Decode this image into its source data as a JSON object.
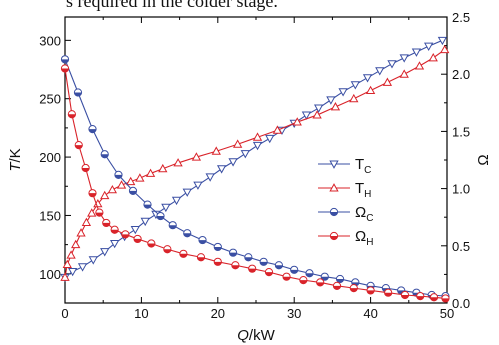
{
  "caption": "s required in the colder stage.",
  "chart_data": {
    "type": "line",
    "title": "",
    "xlabel_main": "Q",
    "xlabel_unit": "/kW",
    "ylabel_main": "T",
    "ylabel_unit": "/K",
    "y2label": "Ω",
    "xlim": [
      0,
      50
    ],
    "ylim": [
      75,
      320
    ],
    "y2lim": [
      0,
      2.5
    ],
    "xticks": [
      0,
      10,
      20,
      30,
      40,
      50
    ],
    "yticks": [
      100,
      150,
      200,
      250,
      300
    ],
    "y2ticks": [
      "0.0",
      "0.5",
      "1.0",
      "1.5",
      "2.0",
      "2.5"
    ],
    "grid": false,
    "legend_position": "right",
    "colors": {
      "blue": "#3a4fa3",
      "red": "#d9232a"
    },
    "series": [
      {
        "name": "T",
        "sub": "C",
        "axis": "left",
        "marker": "triangle-down",
        "color": "#3a4fa3",
        "points": [
          [
            0,
            97
          ],
          [
            1,
            102
          ],
          [
            2.3,
            106
          ],
          [
            3.7,
            112
          ],
          [
            5.2,
            119
          ],
          [
            6.5,
            126
          ],
          [
            7.8,
            132
          ],
          [
            9.2,
            138
          ],
          [
            10.5,
            145
          ],
          [
            11.9,
            151
          ],
          [
            13.2,
            157
          ],
          [
            14.6,
            163
          ],
          [
            16,
            170
          ],
          [
            17.4,
            176
          ],
          [
            19,
            183
          ],
          [
            20.5,
            190
          ],
          [
            22,
            196
          ],
          [
            23.6,
            203
          ],
          [
            25.2,
            210
          ],
          [
            26.8,
            216
          ],
          [
            28.4,
            223
          ],
          [
            30,
            229
          ],
          [
            31.6,
            236
          ],
          [
            33.2,
            242
          ],
          [
            34.8,
            249
          ],
          [
            36.4,
            256
          ],
          [
            38,
            262
          ],
          [
            39.6,
            268
          ],
          [
            41.2,
            274
          ],
          [
            42.8,
            280
          ],
          [
            44.4,
            285
          ],
          [
            46,
            290
          ],
          [
            47.6,
            295
          ],
          [
            49.4,
            300
          ]
        ]
      },
      {
        "name": "T",
        "sub": "H",
        "axis": "left",
        "marker": "triangle-up",
        "color": "#d9232a",
        "points": [
          [
            0,
            97
          ],
          [
            0.3,
            108
          ],
          [
            0.8,
            116
          ],
          [
            1.4,
            125
          ],
          [
            2.1,
            135
          ],
          [
            2.8,
            144
          ],
          [
            3.5,
            152
          ],
          [
            4.3,
            160
          ],
          [
            5.2,
            167
          ],
          [
            6.2,
            172
          ],
          [
            7.4,
            176
          ],
          [
            8.6,
            179
          ],
          [
            9.8,
            182
          ],
          [
            11.2,
            186
          ],
          [
            12.8,
            190
          ],
          [
            14.8,
            195
          ],
          [
            17.2,
            200
          ],
          [
            19.8,
            205
          ],
          [
            22.6,
            211
          ],
          [
            25.2,
            217
          ],
          [
            27.8,
            223
          ],
          [
            30.4,
            230
          ],
          [
            33,
            236
          ],
          [
            35.4,
            243
          ],
          [
            37.8,
            250
          ],
          [
            40,
            257
          ],
          [
            42.2,
            264
          ],
          [
            44.4,
            271
          ],
          [
            46.4,
            278
          ],
          [
            48.2,
            285
          ],
          [
            49.7,
            292
          ]
        ]
      },
      {
        "name": "Ω",
        "sub": "C",
        "axis": "right",
        "marker": "circle-half",
        "color": "#3a4fa3",
        "points": [
          [
            0,
            2.13
          ],
          [
            1.7,
            1.84
          ],
          [
            3.6,
            1.52
          ],
          [
            5.2,
            1.3
          ],
          [
            7,
            1.12
          ],
          [
            8.9,
            0.98
          ],
          [
            10.8,
            0.86
          ],
          [
            12.5,
            0.76
          ],
          [
            14.1,
            0.68
          ],
          [
            16,
            0.61
          ],
          [
            18,
            0.55
          ],
          [
            20,
            0.49
          ],
          [
            22,
            0.44
          ],
          [
            24,
            0.4
          ],
          [
            26,
            0.36
          ],
          [
            28,
            0.33
          ],
          [
            30,
            0.29
          ],
          [
            32,
            0.26
          ],
          [
            34,
            0.23
          ],
          [
            36,
            0.21
          ],
          [
            38,
            0.18
          ],
          [
            40,
            0.15
          ],
          [
            42,
            0.13
          ],
          [
            44,
            0.11
          ],
          [
            46,
            0.09
          ],
          [
            48,
            0.07
          ],
          [
            49.8,
            0.06
          ]
        ]
      },
      {
        "name": "Ω",
        "sub": "H",
        "axis": "right",
        "marker": "circle-half",
        "color": "#d9232a",
        "points": [
          [
            0,
            2.05
          ],
          [
            0.9,
            1.65
          ],
          [
            1.8,
            1.38
          ],
          [
            2.7,
            1.18
          ],
          [
            3.6,
            0.96
          ],
          [
            4.5,
            0.79
          ],
          [
            5.4,
            0.7
          ],
          [
            6.5,
            0.64
          ],
          [
            7.9,
            0.6
          ],
          [
            9.5,
            0.56
          ],
          [
            11.3,
            0.52
          ],
          [
            13.4,
            0.47
          ],
          [
            15.5,
            0.43
          ],
          [
            17.8,
            0.4
          ],
          [
            20,
            0.36
          ],
          [
            22.3,
            0.33
          ],
          [
            24.5,
            0.3
          ],
          [
            26.7,
            0.27
          ],
          [
            29,
            0.23
          ],
          [
            31.2,
            0.2
          ],
          [
            33.4,
            0.18
          ],
          [
            35.6,
            0.15
          ],
          [
            37.8,
            0.13
          ],
          [
            40,
            0.11
          ],
          [
            42.3,
            0.09
          ],
          [
            44.5,
            0.07
          ],
          [
            46.5,
            0.06
          ],
          [
            48.3,
            0.05
          ],
          [
            49.8,
            0.04
          ]
        ]
      }
    ]
  }
}
